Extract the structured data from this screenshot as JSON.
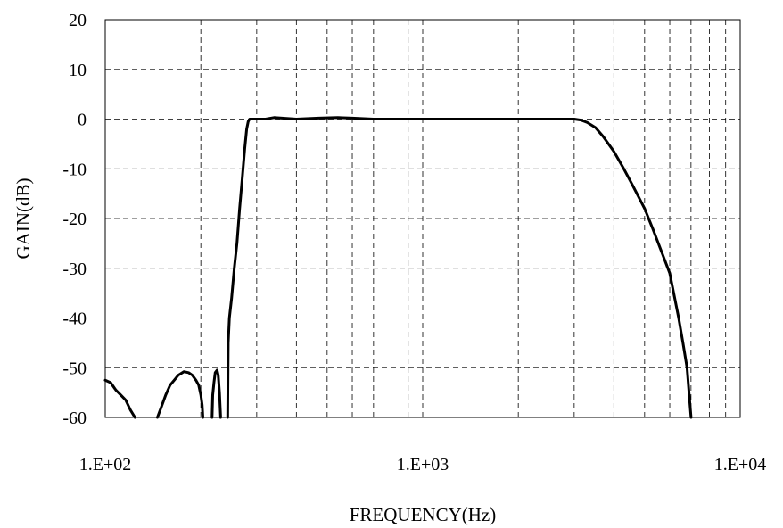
{
  "chart_data": {
    "type": "line",
    "title": "",
    "xlabel": "FREQUENCY(Hz)",
    "ylabel": "GAIN(dB)",
    "x_scale": "log",
    "xlim": [
      100,
      10000
    ],
    "ylim": [
      -60,
      20
    ],
    "grid": true,
    "legend": "none",
    "x_tick_labels": [
      "1.E+02",
      "1.E+03",
      "1.E+04"
    ],
    "x_tick_values": [
      100,
      1000,
      10000
    ],
    "y_tick_labels": [
      "20",
      "10",
      "0",
      "-10",
      "-20",
      "-30",
      "-40",
      "-50",
      "-60"
    ],
    "y_tick_values": [
      20,
      10,
      0,
      -10,
      -20,
      -30,
      -40,
      -50,
      -60
    ],
    "series": [
      {
        "color": "#000000",
        "segments": [
          {
            "x": [
              100,
              104,
              108,
              112,
              116,
              120,
              124
            ],
            "y": [
              -52.5,
              -53,
              -54.5,
              -55.5,
              -56.5,
              -58.5,
              -60
            ]
          },
          {
            "x": [
              146,
              150,
              155,
              160,
              165,
              170,
              177,
              183,
              188,
              193,
              197,
              200,
              202,
              203
            ],
            "y": [
              -60,
              -58,
              -55.5,
              -53.5,
              -52.5,
              -51.5,
              -50.8,
              -51,
              -51.5,
              -52.5,
              -53.5,
              -55.5,
              -57.5,
              -60
            ]
          },
          {
            "x": [
              217,
              218,
              220,
              222,
              225,
              227,
              229,
              231
            ],
            "y": [
              -60,
              -55.5,
              -53,
              -51,
              -50.5,
              -51.5,
              -55,
              -60
            ]
          },
          {
            "x": [
              243,
              244,
              246,
              250,
              255,
              260,
              265,
              270,
              275,
              279,
              282,
              285,
              288,
              300,
              320,
              340,
              400,
              470,
              540,
              600,
              700,
              1000,
              1500,
              2000,
              2500,
              3000,
              3150,
              3300,
              3500,
              3700,
              4000,
              4300,
              4600,
              5000,
              5300,
              5600,
              6000,
              6400,
              6600,
              6800,
              6900,
              7000
            ],
            "y": [
              -60,
              -45,
              -40,
              -36,
              -30,
              -25,
              -18,
              -12,
              -6,
              -2,
              -0.5,
              0,
              0,
              0,
              0,
              0.3,
              0,
              0.2,
              0.3,
              0.2,
              0,
              0,
              0,
              0,
              0,
              0,
              -0.2,
              -0.7,
              -1.7,
              -3.5,
              -6.5,
              -10,
              -13.5,
              -18,
              -22,
              -26,
              -31,
              -40,
              -45,
              -50,
              -55,
              -60
            ]
          }
        ]
      }
    ]
  }
}
